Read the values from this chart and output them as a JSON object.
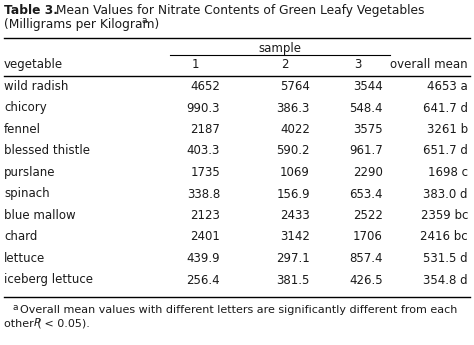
{
  "title_bold": "Table 3.",
  "title_rest": " Mean Values for Nitrate Contents of Green Leafy Vegetables",
  "title_line2": "(Milligrams per Kilogram)",
  "title_superscript": "a",
  "col_headers": [
    "vegetable",
    "1",
    "2",
    "3",
    "overall mean"
  ],
  "group_header": "sample",
  "rows": [
    [
      "wild radish",
      "4652",
      "5764",
      "3544",
      "4653 a"
    ],
    [
      "chicory",
      "990.3",
      "386.3",
      "548.4",
      "641.7 d"
    ],
    [
      "fennel",
      "2187",
      "4022",
      "3575",
      "3261 b"
    ],
    [
      "blessed thistle",
      "403.3",
      "590.2",
      "961.7",
      "651.7 d"
    ],
    [
      "purslane",
      "1735",
      "1069",
      "2290",
      "1698 c"
    ],
    [
      "spinach",
      "338.8",
      "156.9",
      "653.4",
      "383.0 d"
    ],
    [
      "blue mallow",
      "2123",
      "2433",
      "2522",
      "2359 bc"
    ],
    [
      "chard",
      "2401",
      "3142",
      "1706",
      "2416 bc"
    ],
    [
      "lettuce",
      "439.9",
      "297.1",
      "857.4",
      "531.5 d"
    ],
    [
      "iceberg lettuce",
      "256.4",
      "381.5",
      "426.5",
      "354.8 d"
    ]
  ],
  "footnote_super": "a",
  "footnote_text1": "Overall mean values with different letters are significantly different from each",
  "footnote_text2": "other (",
  "footnote_text3": "P",
  "footnote_text4": " < 0.05).",
  "background_color": "#ffffff",
  "text_color": "#1a1a1a",
  "font_size": 8.5,
  "title_font_size": 8.8,
  "footnote_font_size": 8.0
}
